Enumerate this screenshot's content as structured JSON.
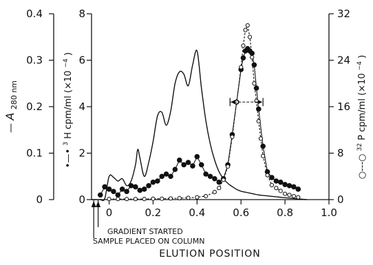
{
  "chart_data": {
    "type": "line",
    "xlabel": "ELUTION POSITION",
    "x_ticks": [
      "0",
      "0.2",
      "0.4",
      "0.6",
      "0.8",
      "1.0"
    ],
    "xlim": [
      -0.08,
      1.0
    ],
    "y_axes": {
      "a280": {
        "label_prefix": "—",
        "label_main": "A",
        "label_sub": "280 nm",
        "ylim": [
          0,
          0.4
        ],
        "ticks": [
          "0",
          "0.1",
          "0.2",
          "0.3",
          "0.4"
        ]
      },
      "h3": {
        "label_prefix": "•—•",
        "label_sup": "3",
        "label_main": "H cpm/ml (×10",
        "label_exp": "−4",
        "label_close": ")",
        "ylim": [
          0,
          8
        ],
        "ticks": [
          "0",
          "2",
          "4",
          "6",
          "8"
        ]
      },
      "p32": {
        "label_prefix": "○---○",
        "label_sup": "32",
        "label_main": "P cpm/ml (×10",
        "label_exp": "−4",
        "label_close": ")",
        "ylim": [
          0,
          32
        ],
        "ticks": [
          "0",
          "8",
          "16",
          "24",
          "32"
        ]
      }
    },
    "annotations": [
      "GRADIENT STARTED",
      "SAMPLE PLACED ON COLUMN"
    ],
    "marker_x": [
      -0.07,
      -0.05
    ],
    "bracket": {
      "x": [
        0.55,
        0.7
      ],
      "y_p32": 16.8
    },
    "series": [
      {
        "axis": "a280",
        "style": "solid",
        "x": [
          -0.08,
          -0.06,
          -0.04,
          -0.02,
          0.0,
          0.02,
          0.04,
          0.06,
          0.08,
          0.1,
          0.12,
          0.13,
          0.14,
          0.16,
          0.18,
          0.2,
          0.22,
          0.24,
          0.26,
          0.28,
          0.3,
          0.32,
          0.34,
          0.36,
          0.38,
          0.4,
          0.42,
          0.44,
          0.46,
          0.48,
          0.5,
          0.52,
          0.54,
          0.56,
          0.58,
          0.6,
          0.62,
          0.64,
          0.66,
          0.68,
          0.7,
          0.72,
          0.74,
          0.76,
          0.78,
          0.8,
          0.85,
          0.9
        ],
        "y": [
          0.0,
          0.0,
          0.0,
          0.002,
          0.05,
          0.048,
          0.04,
          0.045,
          0.03,
          0.04,
          0.075,
          0.108,
          0.09,
          0.05,
          0.08,
          0.125,
          0.18,
          0.188,
          0.16,
          0.19,
          0.25,
          0.275,
          0.27,
          0.245,
          0.29,
          0.32,
          0.24,
          0.17,
          0.12,
          0.085,
          0.06,
          0.045,
          0.035,
          0.028,
          0.022,
          0.018,
          0.016,
          0.014,
          0.012,
          0.01,
          0.009,
          0.008,
          0.007,
          0.006,
          0.005,
          0.004,
          0.002,
          0.0
        ]
      },
      {
        "axis": "h3",
        "style": "filled-dots",
        "x": [
          -0.04,
          -0.02,
          0.0,
          0.02,
          0.04,
          0.06,
          0.08,
          0.1,
          0.12,
          0.14,
          0.16,
          0.18,
          0.2,
          0.22,
          0.24,
          0.26,
          0.28,
          0.3,
          0.32,
          0.34,
          0.36,
          0.38,
          0.4,
          0.42,
          0.44,
          0.46,
          0.48,
          0.5,
          0.52,
          0.54,
          0.56,
          0.58,
          0.6,
          0.61,
          0.62,
          0.63,
          0.64,
          0.65,
          0.66,
          0.67,
          0.68,
          0.7,
          0.72,
          0.74,
          0.76,
          0.78,
          0.8,
          0.82,
          0.84,
          0.86
        ],
        "y": [
          0.2,
          0.55,
          0.45,
          0.35,
          0.2,
          0.45,
          0.35,
          0.6,
          0.55,
          0.4,
          0.45,
          0.6,
          0.75,
          0.8,
          1.0,
          1.1,
          1.0,
          1.3,
          1.7,
          1.5,
          1.6,
          1.45,
          1.85,
          1.5,
          1.1,
          1.0,
          0.9,
          0.75,
          0.9,
          1.5,
          2.8,
          4.2,
          5.6,
          6.1,
          6.4,
          6.5,
          6.4,
          6.3,
          5.8,
          4.8,
          3.9,
          2.3,
          1.2,
          0.95,
          0.8,
          0.75,
          0.65,
          0.6,
          0.55,
          0.45
        ]
      },
      {
        "axis": "p32",
        "style": "open-dots-dashed",
        "x": [
          0.0,
          0.04,
          0.08,
          0.12,
          0.16,
          0.2,
          0.24,
          0.28,
          0.32,
          0.36,
          0.4,
          0.44,
          0.48,
          0.5,
          0.52,
          0.54,
          0.56,
          0.58,
          0.6,
          0.61,
          0.62,
          0.63,
          0.64,
          0.65,
          0.66,
          0.67,
          0.68,
          0.69,
          0.7,
          0.72,
          0.74,
          0.76,
          0.78,
          0.8,
          0.82,
          0.84,
          0.86
        ],
        "y": [
          0.1,
          0.1,
          0.1,
          0.1,
          0.1,
          0.15,
          0.15,
          0.2,
          0.25,
          0.3,
          0.4,
          0.6,
          1.3,
          2.0,
          3.4,
          5.7,
          10.8,
          16.8,
          22.8,
          26.5,
          29.2,
          30.0,
          28.0,
          24.5,
          20.0,
          17.0,
          13.5,
          10.5,
          7.5,
          4.2,
          2.5,
          2.0,
          1.5,
          1.0,
          0.8,
          0.6,
          0.4
        ]
      }
    ]
  }
}
